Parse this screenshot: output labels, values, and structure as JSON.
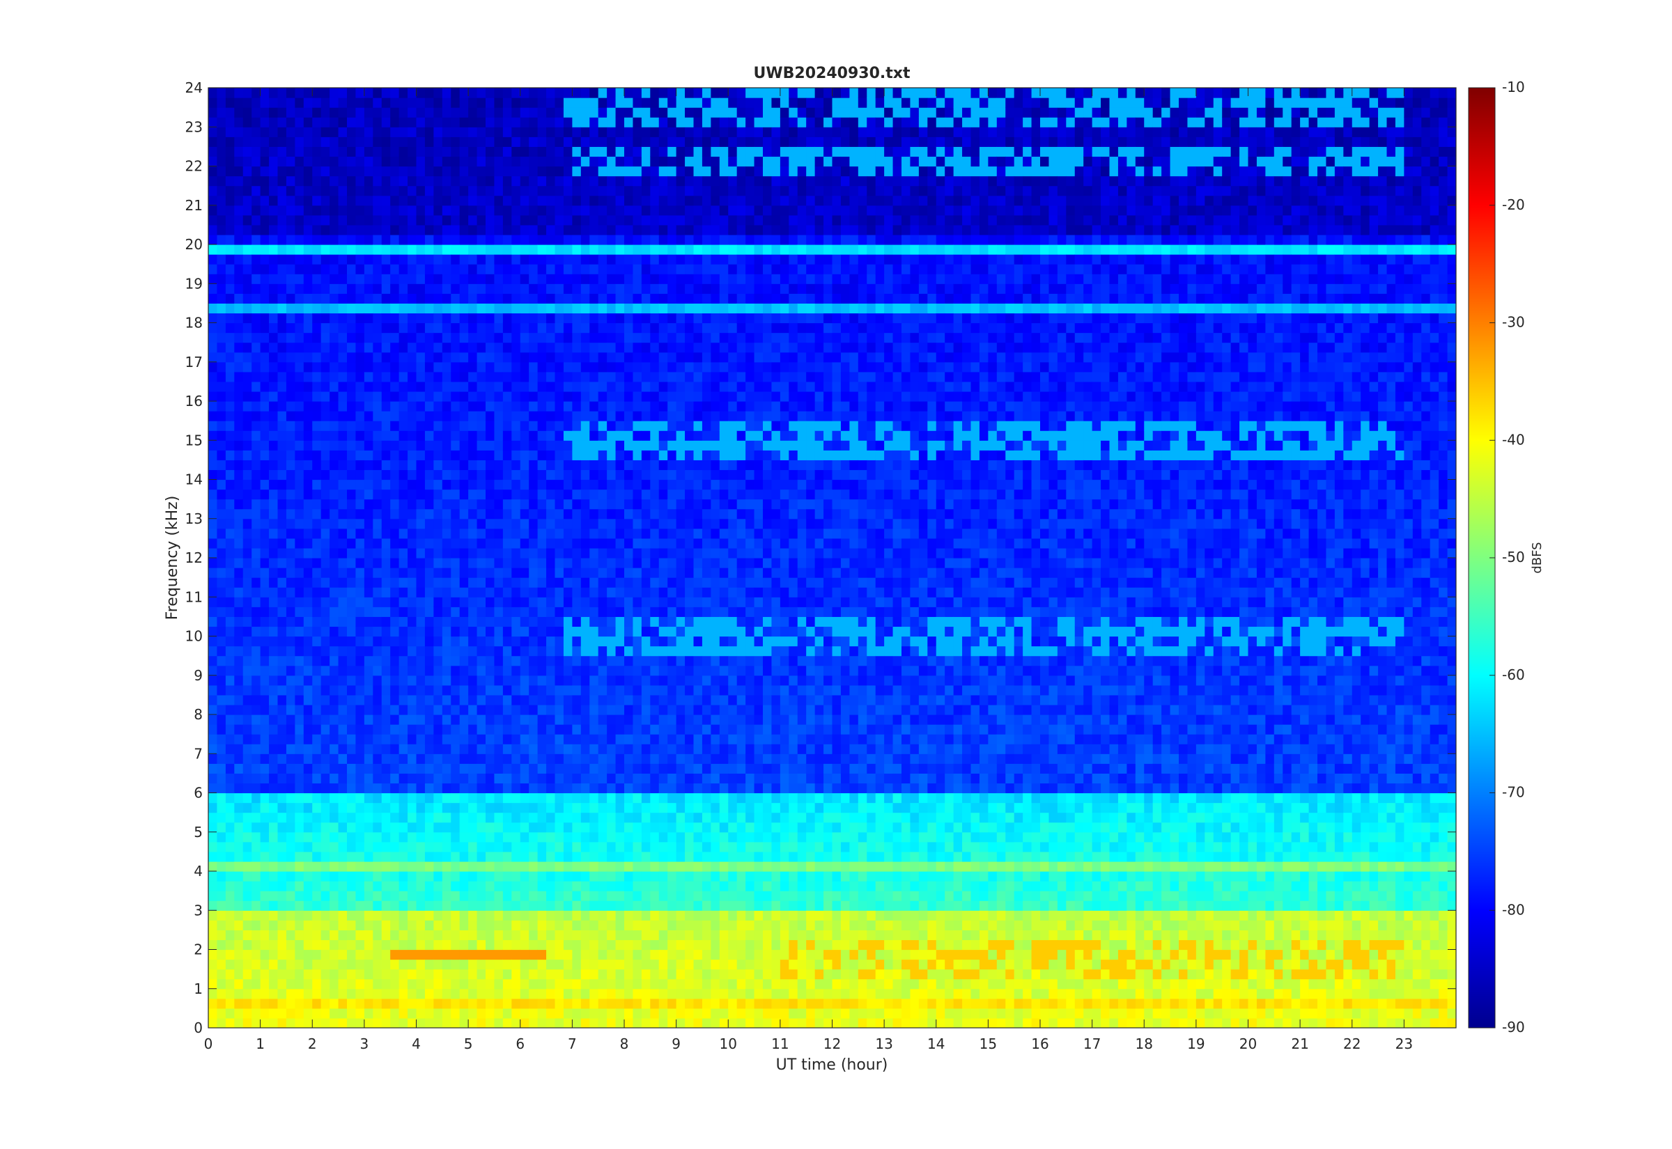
{
  "chart_data": {
    "type": "heatmap",
    "title": "UWB20240930.txt",
    "xlabel": "UT time (hour)",
    "ylabel": "Frequency (kHz)",
    "xlim": [
      0,
      24
    ],
    "ylim": [
      0,
      24
    ],
    "xticks": [
      "0",
      "1",
      "2",
      "3",
      "4",
      "5",
      "6",
      "7",
      "8",
      "9",
      "10",
      "11",
      "12",
      "13",
      "14",
      "15",
      "16",
      "17",
      "18",
      "19",
      "20",
      "21",
      "22",
      "23"
    ],
    "yticks": [
      "0",
      "1",
      "2",
      "3",
      "4",
      "5",
      "6",
      "7",
      "8",
      "9",
      "10",
      "11",
      "12",
      "13",
      "14",
      "15",
      "16",
      "17",
      "18",
      "19",
      "20",
      "21",
      "22",
      "23",
      "24"
    ],
    "colorbar": {
      "label": "dBFS",
      "colormap": "jet",
      "range": [
        -90,
        -10
      ],
      "ticks": [
        "-90",
        "-80",
        "-70",
        "-60",
        "-50",
        "-40",
        "-30",
        "-20",
        "-10"
      ]
    },
    "features": {
      "background_level_dbfs": {
        "low_freq_0_3khz": -45,
        "mid_freq_3_6khz": -62,
        "high_freq_6_24khz": -75
      },
      "persistent_tones": [
        {
          "freq_khz": 19.8,
          "from_hour": 0,
          "to_hour": 24,
          "level_dbfs": -62
        },
        {
          "freq_khz": 18.3,
          "from_hour": 0,
          "to_hour": 24,
          "level_dbfs": -65
        },
        {
          "freq_khz": 4.2,
          "from_hour": 0,
          "to_hour": 24,
          "level_dbfs": -50
        },
        {
          "freq_khz": 0.6,
          "from_hour": 0,
          "to_hour": 24,
          "level_dbfs": -38
        }
      ],
      "daytime_activity": {
        "from_hour": 6.8,
        "to_hour": 23,
        "bands_khz": [
          10,
          15,
          22.2,
          23.5
        ]
      },
      "low_freq_peak": {
        "freq_khz": 1.9,
        "from_hour": 3.5,
        "to_hour": 6.5,
        "level_dbfs": -32
      }
    }
  }
}
